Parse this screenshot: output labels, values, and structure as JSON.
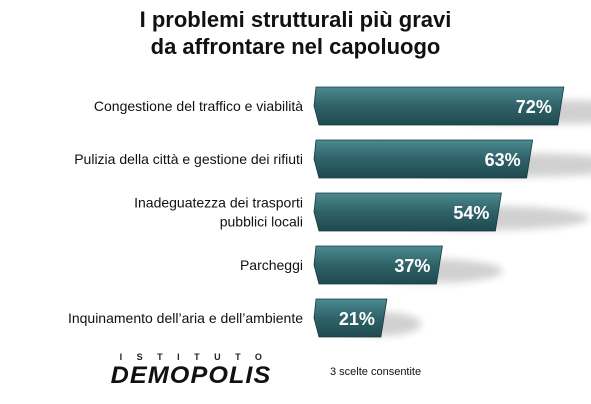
{
  "title": {
    "line1": "I problemi strutturali più gravi",
    "line2": "da affrontare nel capoluogo"
  },
  "chart_data": {
    "type": "bar",
    "orientation": "horizontal",
    "categories": [
      [
        "Congestione del traffico e viabilità"
      ],
      [
        "Pulizia della città e gestione dei rifiuti"
      ],
      [
        "Inadeguatezza dei trasporti",
        "pubblici locali"
      ],
      [
        "Parcheggi"
      ],
      [
        "Inquinamento dell’aria e dell’ambiente"
      ]
    ],
    "values": [
      72,
      63,
      54,
      37,
      21
    ],
    "value_labels": [
      "72%",
      "63%",
      "54%",
      "37%",
      "21%"
    ],
    "unit": "%",
    "grid": false,
    "bar_color": "#2f6268",
    "bar_highlight": "#4a8a90"
  },
  "footer": {
    "brand_top": "ISTITUTO",
    "brand_main": "DEMOPOLIS",
    "note": "3 scelte consentite"
  }
}
